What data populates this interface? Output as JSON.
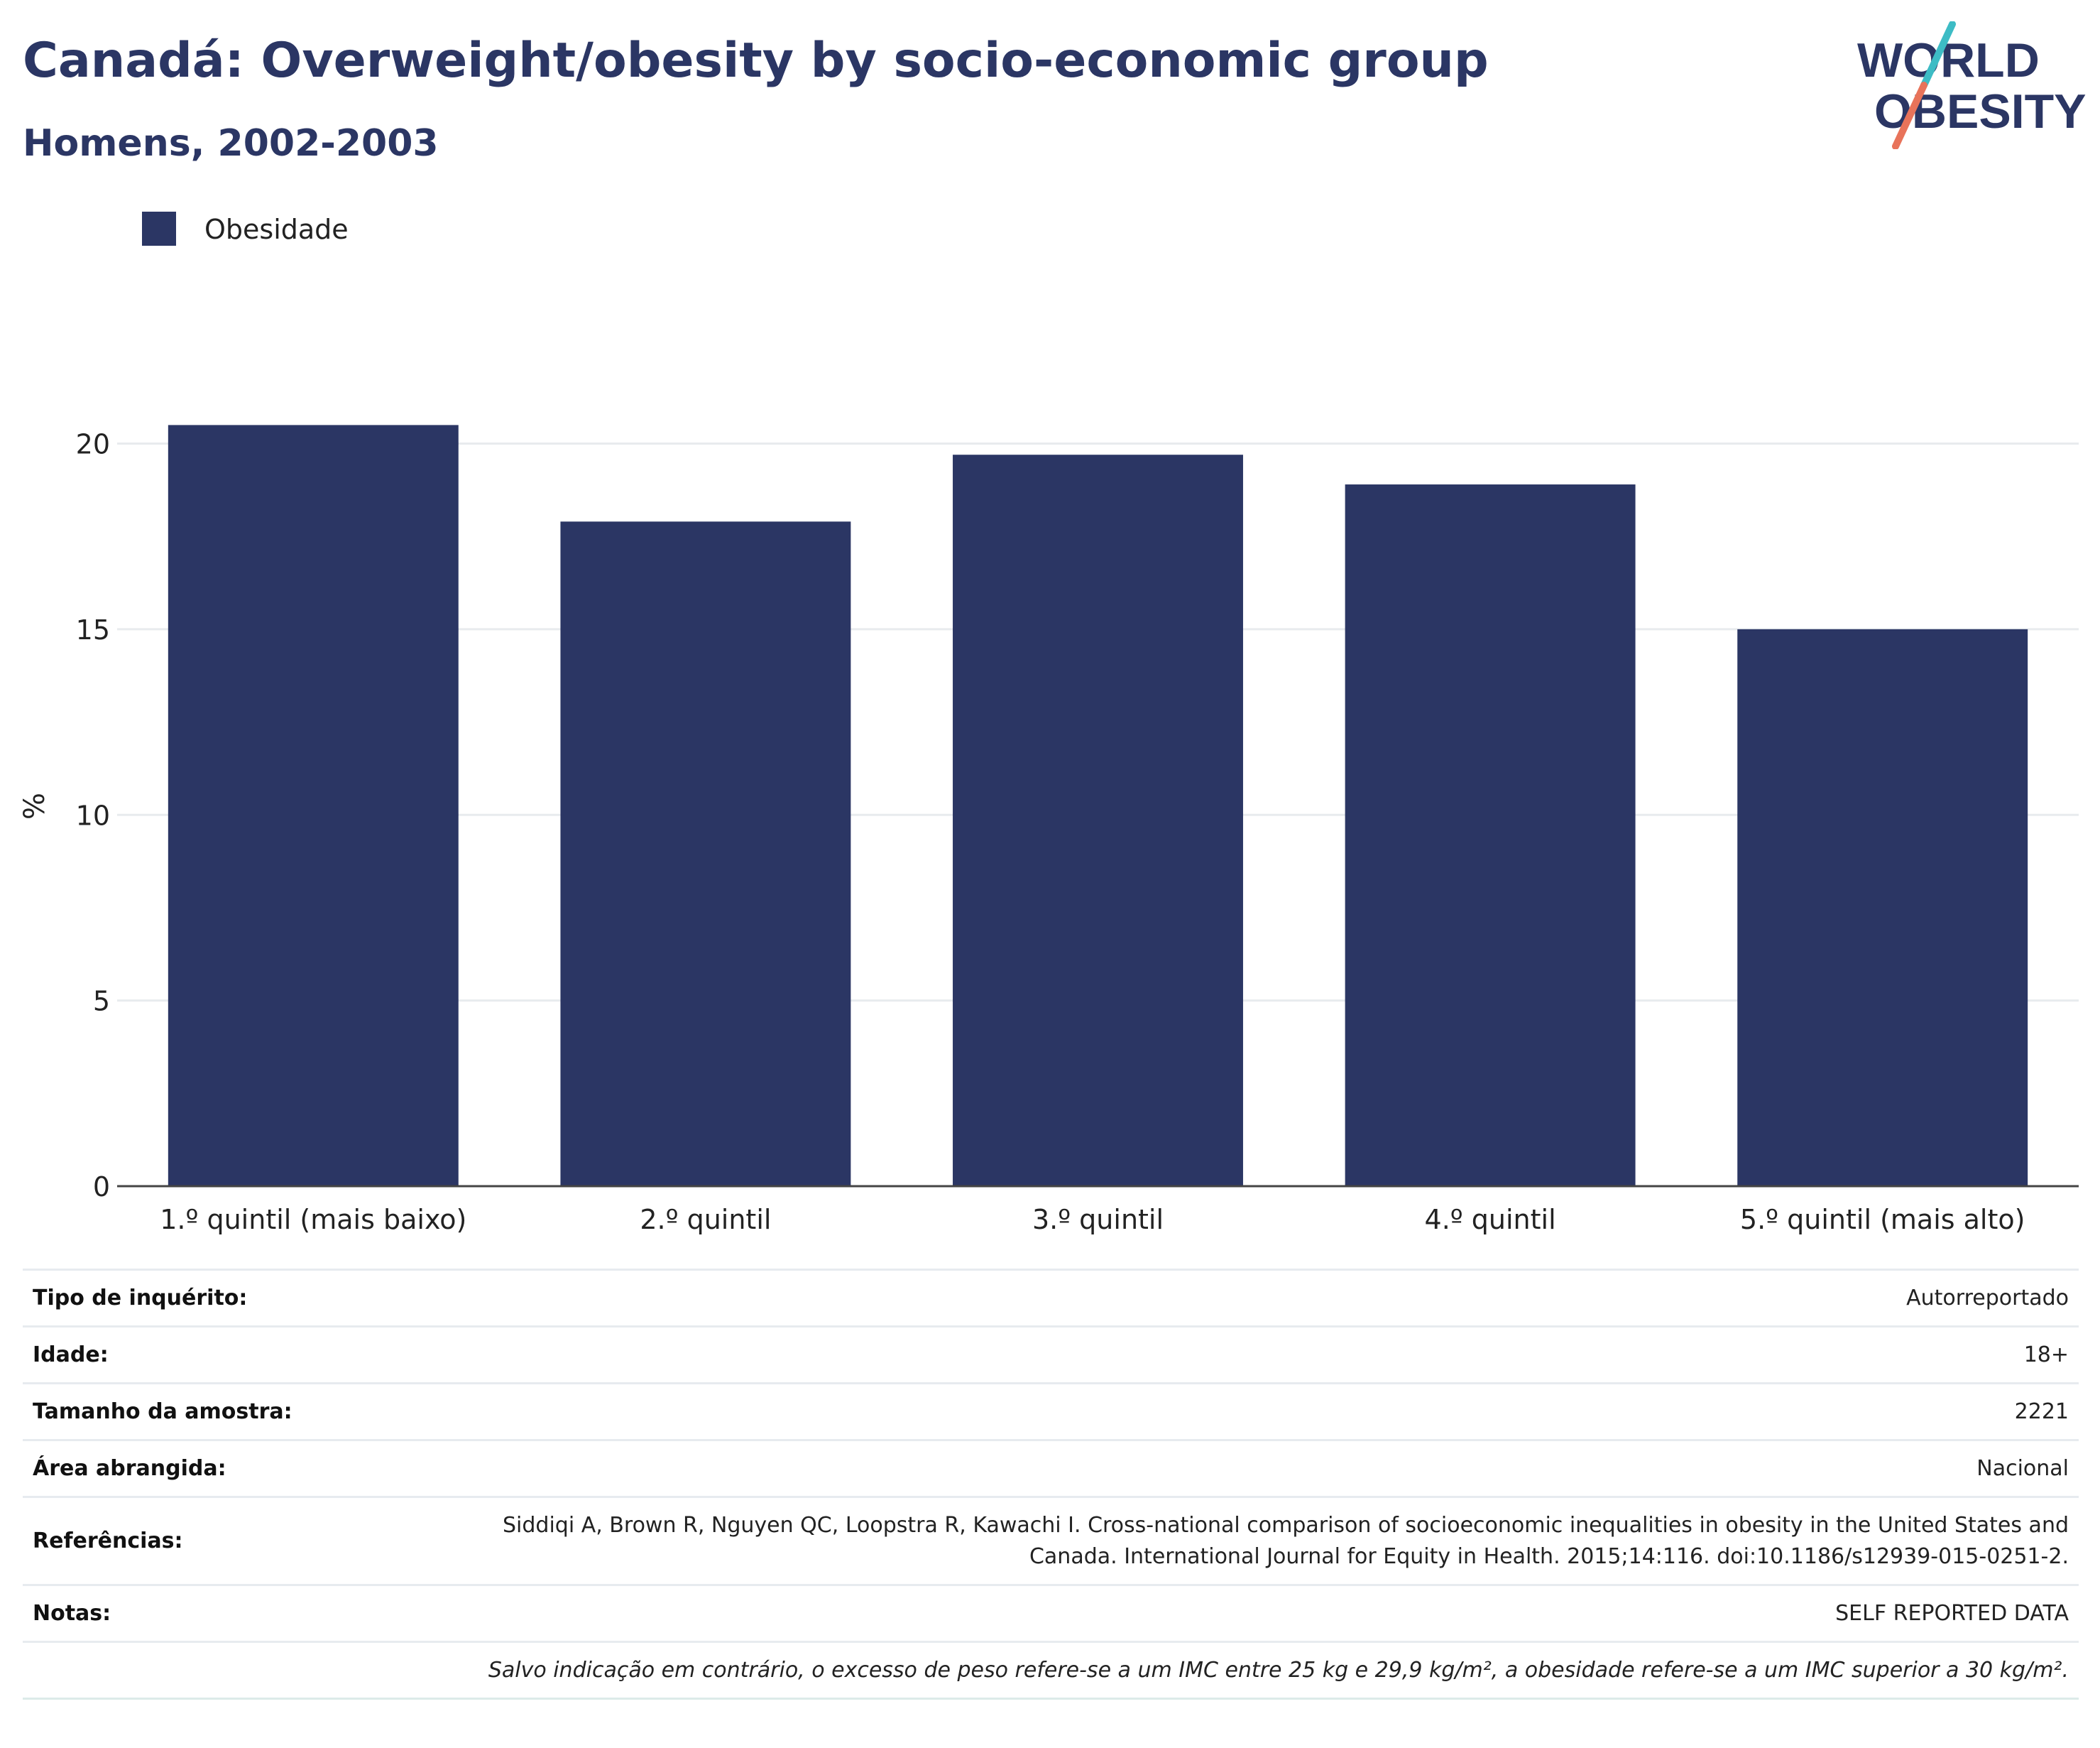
{
  "header": {
    "title": "Canadá: Overweight/obesity by socio-economic group",
    "subtitle": "Homens, 2002-2003"
  },
  "logo": {
    "line1": "WORLD",
    "line2": "OBESITY",
    "color_text": "#2b3664",
    "color_slash_top": "#3dbcc5",
    "color_slash_bottom": "#e8735a"
  },
  "chart_data": {
    "type": "bar",
    "categories": [
      "1.º quintil (mais baixo)",
      "2.º quintil",
      "3.º quintil",
      "4.º quintil",
      "5.º quintil (mais alto)"
    ],
    "series": [
      {
        "name": "Obesidade",
        "values": [
          20.5,
          17.9,
          19.7,
          18.9,
          15.0
        ],
        "color": "#2b3664"
      }
    ],
    "xlabel": "",
    "ylabel": "%",
    "ylim": [
      0,
      22
    ],
    "yticks": [
      0,
      5,
      10,
      15,
      20
    ],
    "grid": true,
    "legend_position": "top-left"
  },
  "info": [
    {
      "label": "Tipo de inquérito:",
      "value": "Autorreportado"
    },
    {
      "label": "Idade:",
      "value": "18+"
    },
    {
      "label": "Tamanho da amostra:",
      "value": "2221"
    },
    {
      "label": "Área abrangida:",
      "value": "Nacional"
    },
    {
      "label": "Referências:",
      "value": "Siddiqi A, Brown R, Nguyen QC, Loopstra R, Kawachi I. Cross-national comparison of socioeconomic inequalities in obesity in the United States and Canada. International Journal for Equity in Health. 2015;14:116. doi:10.1186/s12939-015-0251-2."
    },
    {
      "label": "Notas:",
      "value": "SELF REPORTED DATA"
    }
  ],
  "footnote": "Salvo indicação em contrário, o excesso de peso refere-se a um IMC entre 25 kg e 29,9 kg/m², a obesidade refere-se a um IMC superior a 30 kg/m²."
}
